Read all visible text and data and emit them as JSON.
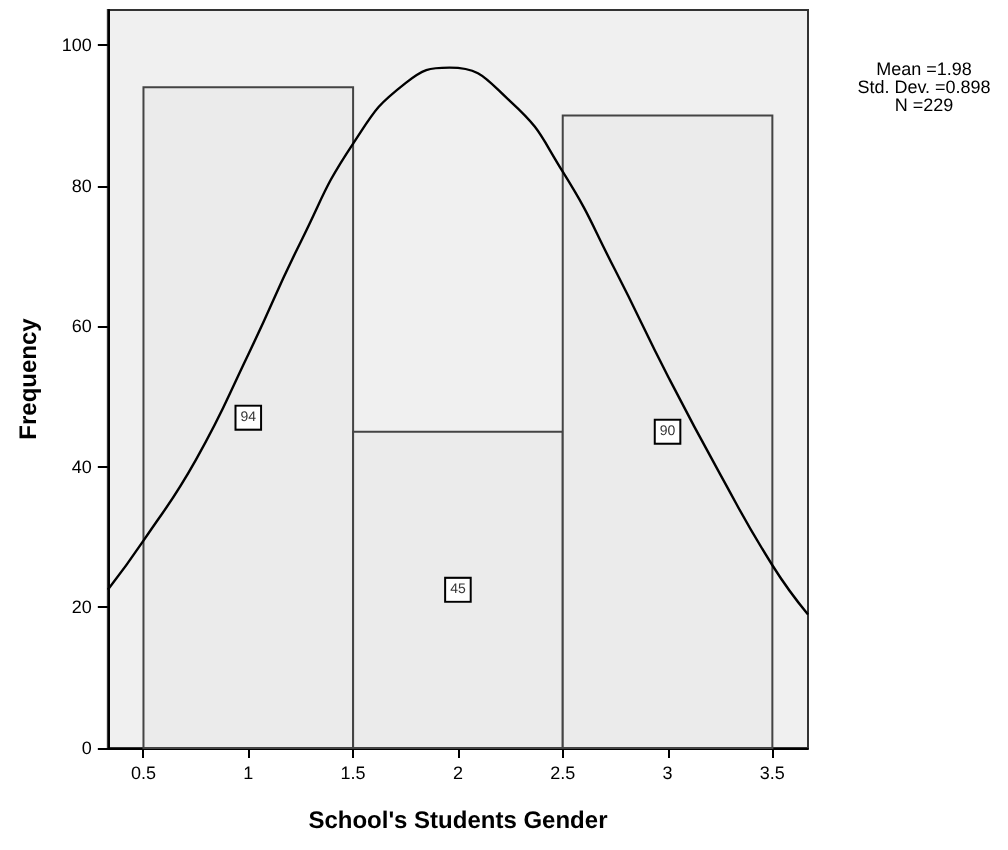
{
  "chart_data": {
    "type": "histogram",
    "xlabel": "School's Students Gender",
    "ylabel": "Frequency",
    "bins": [
      0.5,
      1.5,
      2.5,
      3.5
    ],
    "values": [
      94,
      45,
      90
    ],
    "color": "#ebebeb",
    "value_labels": [
      "94",
      "45",
      "90"
    ],
    "series": [
      {
        "type": "line",
        "color": "#000000",
        "x": [
          0.33,
          0.5,
          0.75,
          1,
          1.25,
          1.5,
          1.75,
          1.96,
          2.25,
          2.5,
          2.75,
          3,
          3.25,
          3.5,
          3.67
        ],
        "values": [
          22.5,
          29.5,
          41,
          56,
          72,
          86,
          94.6,
          96.8,
          92,
          82,
          68,
          53,
          39,
          26,
          19
        ]
      }
    ],
    "xlim": [
      0.33,
      3.67
    ],
    "ylim": [
      0,
      105
    ],
    "xticks": [
      0.5,
      1,
      1.5,
      2,
      2.5,
      3,
      3.5
    ],
    "yticks": [
      0,
      20,
      40,
      60,
      80,
      100
    ],
    "grid": false,
    "marker": "none",
    "annotations": [
      "Mean =1.98",
      "Std. Dev. =0.898",
      "N =229"
    ]
  }
}
